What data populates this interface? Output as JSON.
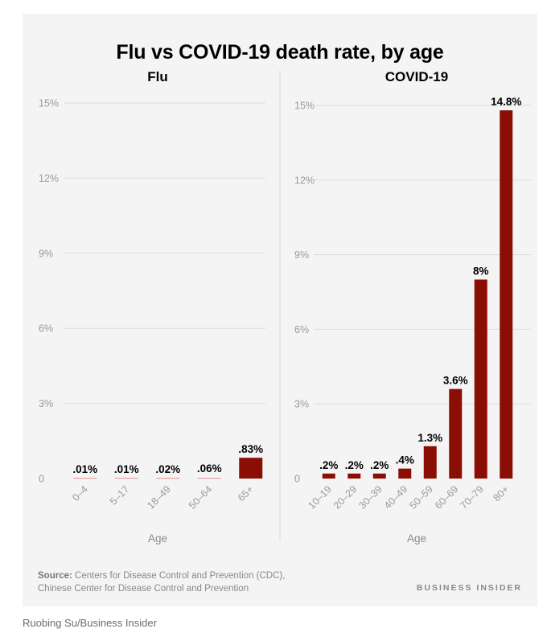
{
  "title": "Flu vs COVID-19 death rate, by age",
  "chart_data": [
    {
      "type": "bar",
      "title": "Flu",
      "xlabel": "Age",
      "ylabel": "",
      "ylim": [
        0,
        15
      ],
      "yticks": [
        "0",
        "3%",
        "6%",
        "9%",
        "12%",
        "15%"
      ],
      "ytick_values": [
        0,
        3,
        6,
        9,
        12,
        15
      ],
      "grid": true,
      "categories": [
        "0–4",
        "5–17",
        "18–49",
        "50–64",
        "65+"
      ],
      "values": [
        0.01,
        0.01,
        0.02,
        0.06,
        0.83
      ],
      "data_labels": [
        ".01%",
        ".01%",
        ".02%",
        ".06%",
        ".83%"
      ]
    },
    {
      "type": "bar",
      "title": "COVID-19",
      "xlabel": "Age",
      "ylabel": "",
      "ylim": [
        0,
        15
      ],
      "yticks": [
        "0",
        "3%",
        "6%",
        "9%",
        "12%",
        "15%"
      ],
      "ytick_values": [
        0,
        3,
        6,
        9,
        12,
        15
      ],
      "grid": true,
      "categories": [
        "10–19",
        "20–29",
        "30–39",
        "40–49",
        "50–59",
        "60–69",
        "70–79",
        "80+"
      ],
      "values": [
        0.2,
        0.2,
        0.2,
        0.4,
        1.3,
        3.6,
        8,
        14.8
      ],
      "data_labels": [
        ".2%",
        ".2%",
        ".2%",
        ".4%",
        "1.3%",
        "3.6%",
        "8%",
        "14.8%"
      ]
    }
  ],
  "source_label": "Source:",
  "source_line1": "Centers for Disease Control and Prevention (CDC),",
  "source_line2": "Chinese Center for Disease Control and Prevention",
  "brand": "BUSINESS INSIDER",
  "credit": "Ruobing Su/Business Insider",
  "colors": {
    "bar": "#8b0e04",
    "grid": "#dcdcdc",
    "tick": "#9a9a9a",
    "background": "#f4f4f4"
  }
}
